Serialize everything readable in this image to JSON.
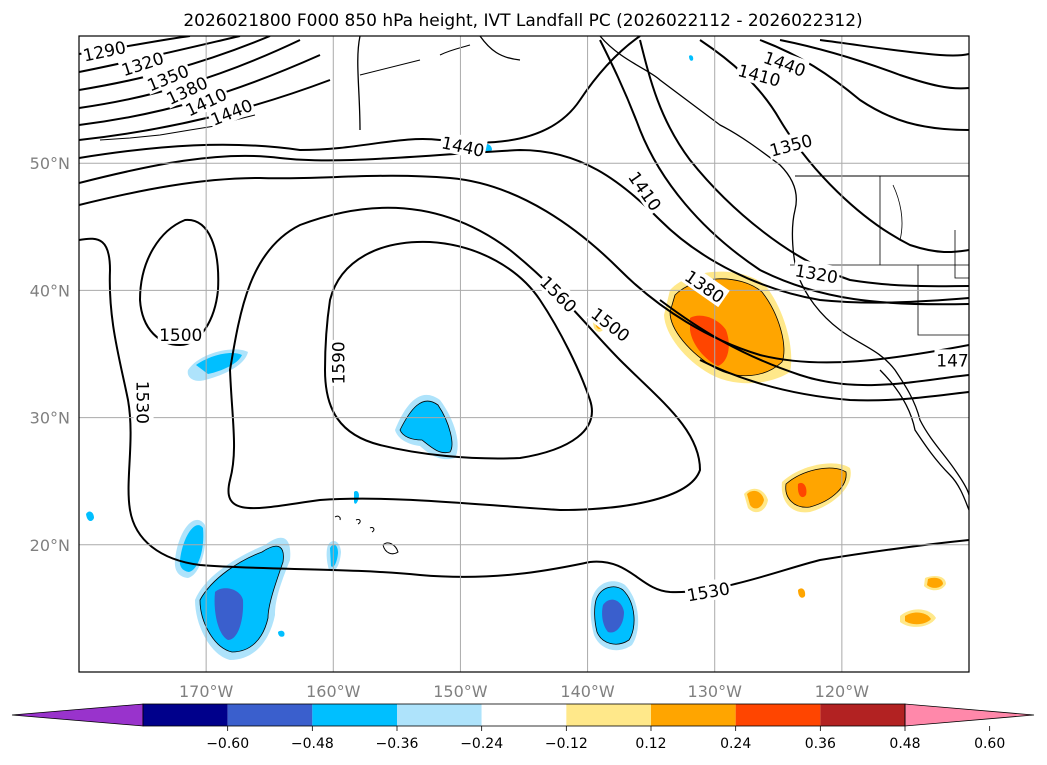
{
  "chart_data": {
    "type": "contour-map",
    "title": "2026021800 F000 850 hPa height, IVT Landfall PC (2026022112 - 2026022312)",
    "projection": "PlateCarree",
    "lon_range": [
      -180,
      -110
    ],
    "lat_range": [
      10,
      60
    ],
    "grid": true,
    "xticks": [
      {
        "lon": -170,
        "label": "170°W"
      },
      {
        "lon": -160,
        "label": "160°W"
      },
      {
        "lon": -150,
        "label": "150°W"
      },
      {
        "lon": -140,
        "label": "140°W"
      },
      {
        "lon": -130,
        "label": "130°W"
      },
      {
        "lon": -120,
        "label": "120°W"
      }
    ],
    "yticks": [
      {
        "lat": 50,
        "label": "50°N"
      },
      {
        "lat": 40,
        "label": "40°N"
      },
      {
        "lat": 30,
        "label": "30°N"
      },
      {
        "lat": 20,
        "label": "20°N"
      }
    ],
    "contour_variable": "850 hPa geopotential height (m)",
    "contour_labels": [
      {
        "text": "1290",
        "lon": -178,
        "lat": 58.8,
        "rot": -12
      },
      {
        "text": "1320",
        "lon": -175,
        "lat": 57.8,
        "rot": -18
      },
      {
        "text": "1350",
        "lon": -173,
        "lat": 56.7,
        "rot": -22
      },
      {
        "text": "1380",
        "lon": -171.5,
        "lat": 55.7,
        "rot": -25
      },
      {
        "text": "1410",
        "lon": -170,
        "lat": 54.8,
        "rot": -25
      },
      {
        "text": "1440",
        "lon": -168,
        "lat": 54.0,
        "rot": -22
      },
      {
        "text": "1440",
        "lon": -149.8,
        "lat": 51.3,
        "rot": 12
      },
      {
        "text": "1410",
        "lon": -135.5,
        "lat": 47.8,
        "rot": 55
      },
      {
        "text": "1380",
        "lon": -130.8,
        "lat": 40.3,
        "rot": 35
      },
      {
        "text": "1560",
        "lon": -142.3,
        "lat": 39.7,
        "rot": 45
      },
      {
        "text": "1500",
        "lon": -138.2,
        "lat": 37.3,
        "rot": 38
      },
      {
        "text": "1590",
        "lon": -159.6,
        "lat": 34.3,
        "rot": -90
      },
      {
        "text": "1500",
        "lon": -172,
        "lat": 36.5,
        "rot": 0
      },
      {
        "text": "1530",
        "lon": -175,
        "lat": 31.2,
        "rot": 90
      },
      {
        "text": "1530",
        "lon": -130.5,
        "lat": 16.3,
        "rot": -10
      },
      {
        "text": "1320",
        "lon": -122,
        "lat": 41.3,
        "rot": 10
      },
      {
        "text": "1350",
        "lon": -124,
        "lat": 51.4,
        "rot": -15
      },
      {
        "text": "1410",
        "lon": -126.5,
        "lat": 56.9,
        "rot": 15
      },
      {
        "text": "1440",
        "lon": -124.5,
        "lat": 57.8,
        "rot": 20
      },
      {
        "text": "147",
        "lon": -111.3,
        "lat": 34.5,
        "rot": 0
      }
    ],
    "fill_variable": "IVT Landfall PC",
    "colorbar": {
      "levels": [
        -0.6,
        -0.48,
        -0.36,
        -0.24,
        -0.12,
        0.12,
        0.24,
        0.36,
        0.48,
        0.6
      ],
      "tick_labels": [
        "−0.60",
        "−0.48",
        "−0.36",
        "−0.24",
        "−0.12",
        "0.12",
        "0.24",
        "0.36",
        "0.48",
        "0.60"
      ],
      "colors": [
        "#9933cc",
        "#00008b",
        "#3a5fcd",
        "#00bfff",
        "#aee3fb",
        "#ffffff",
        "#ffe88a",
        "#ffa500",
        "#ff4500",
        "#b22222",
        "#ff88aa"
      ],
      "extend": "both"
    }
  }
}
